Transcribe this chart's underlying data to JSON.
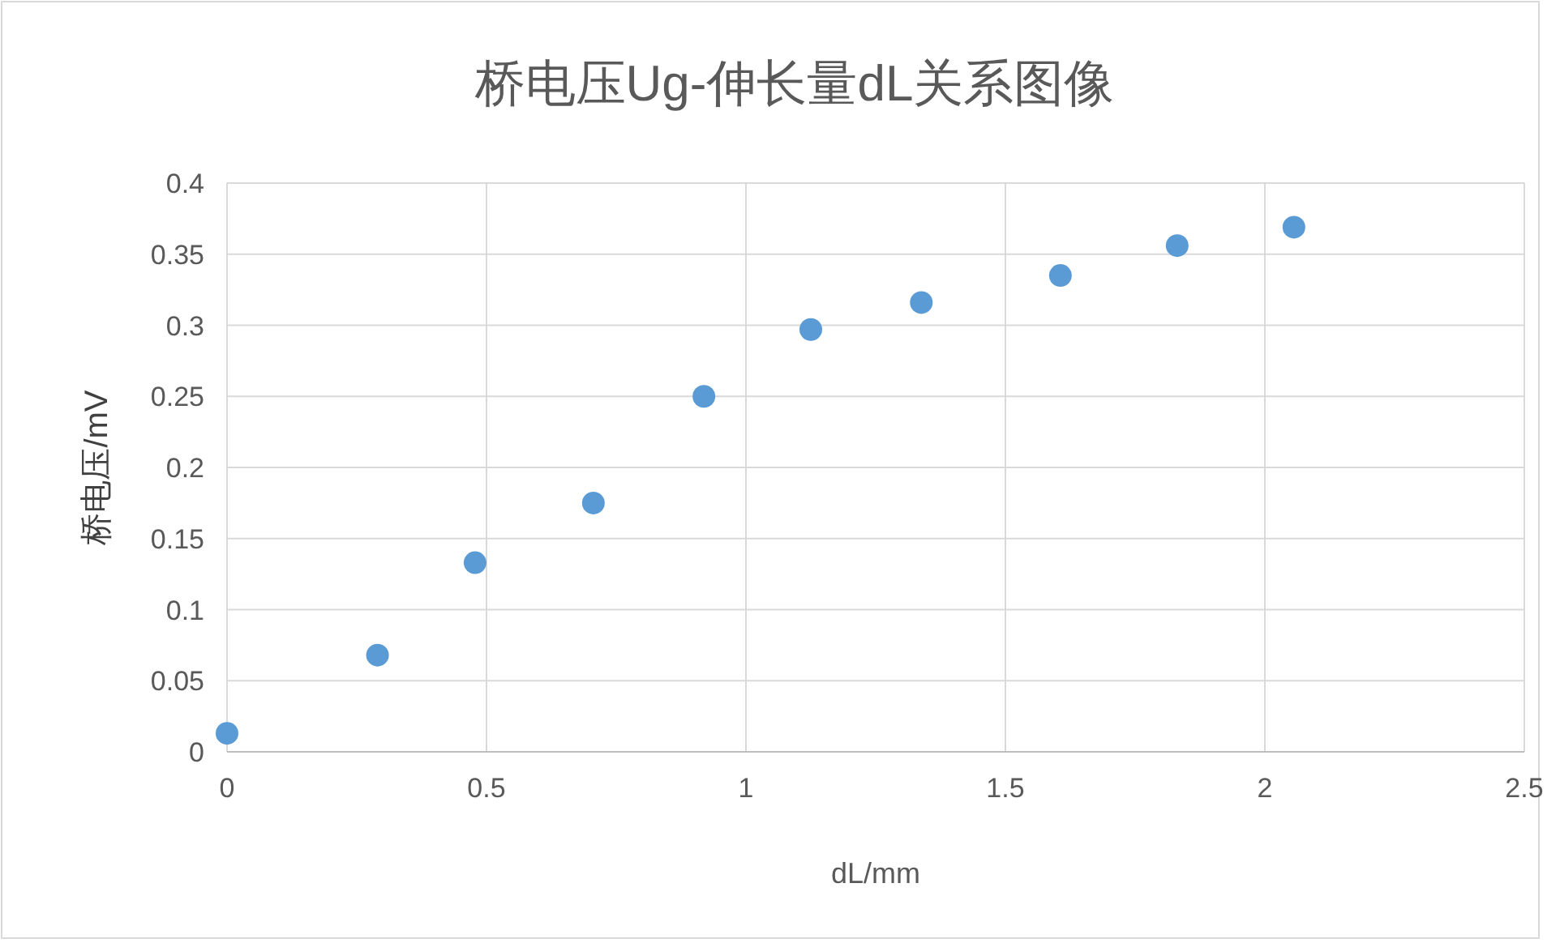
{
  "chart_data": {
    "type": "scatter",
    "title": "桥电压Ug-伸长量dL关系图像",
    "xlabel": "dL/mm",
    "ylabel": "桥电压/mV",
    "series": [
      {
        "color": "#5b9bd5",
        "x": [
          0,
          0.29,
          0.478,
          0.706,
          0.919,
          1.125,
          1.338,
          1.606,
          1.831,
          2.056
        ],
        "values": [
          0.013,
          0.068,
          0.133,
          0.175,
          0.25,
          0.297,
          0.316,
          0.335,
          0.356,
          0.369
        ]
      }
    ],
    "xlim": [
      0,
      2.5
    ],
    "xticks": [
      0,
      0.5,
      1,
      1.5,
      2,
      2.5
    ],
    "ylim": [
      0,
      0.4
    ],
    "yticks": [
      0,
      0.05,
      0.1,
      0.15,
      0.2,
      0.25,
      0.3,
      0.35,
      0.4
    ],
    "grid": true,
    "marker": "circle"
  }
}
